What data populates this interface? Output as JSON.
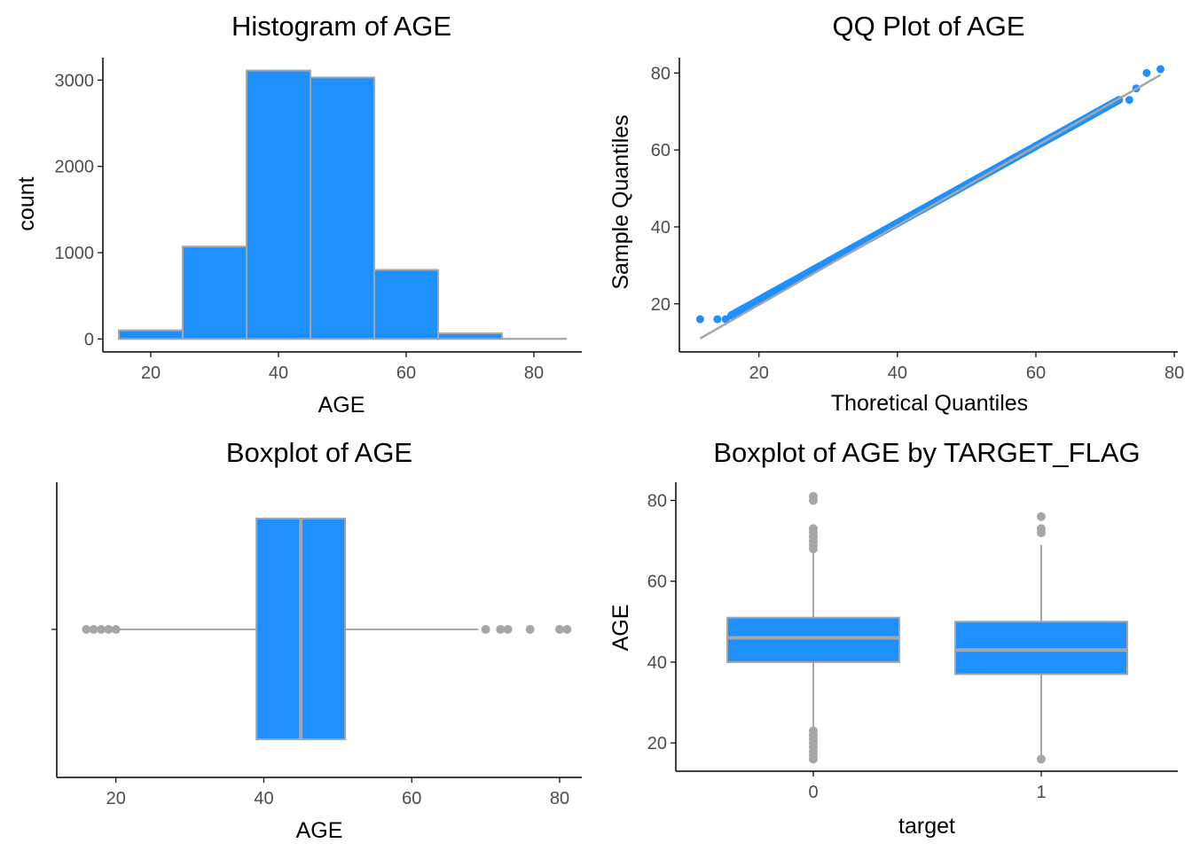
{
  "colors": {
    "fill": "#1E90FF",
    "outline": "#A6A6A6",
    "axis": "#000000",
    "tick_text": "#4d4d4d"
  },
  "chart_data": [
    {
      "type": "bar",
      "title": "Histogram of AGE",
      "xlabel": "AGE",
      "ylabel": "count",
      "xlim": [
        12.5,
        87.5
      ],
      "ylim": [
        -150,
        3260
      ],
      "xticks": [
        "20",
        "40",
        "60",
        "80"
      ],
      "xtick_values": [
        20,
        40,
        60,
        80
      ],
      "yticks": [
        "0",
        "1000",
        "2000",
        "3000"
      ],
      "ytick_values": [
        0,
        1000,
        2000,
        3000
      ],
      "bins": [
        {
          "from": 15,
          "to": 25,
          "count": 100
        },
        {
          "from": 25,
          "to": 35,
          "count": 1070
        },
        {
          "from": 35,
          "to": 45,
          "count": 3110
        },
        {
          "from": 45,
          "to": 55,
          "count": 3030
        },
        {
          "from": 55,
          "to": 65,
          "count": 800
        },
        {
          "from": 65,
          "to": 75,
          "count": 65
        },
        {
          "from": 75,
          "to": 85,
          "count": 3
        }
      ]
    },
    {
      "type": "scatter",
      "title": "QQ Plot of AGE",
      "xlabel": "Thoretical Quantiles",
      "ylabel": "Sample Quantiles",
      "xlim": [
        8.5,
        80.5
      ],
      "ylim": [
        7.5,
        84
      ],
      "xticks": [
        "20",
        "40",
        "60",
        "80"
      ],
      "xtick_values": [
        20,
        40,
        60,
        80
      ],
      "yticks": [
        "20",
        "40",
        "60",
        "80"
      ],
      "ytick_values": [
        20,
        40,
        60,
        80
      ],
      "reference_line": [
        [
          11.5,
          11
        ],
        [
          78,
          79.5
        ]
      ],
      "points": [
        [
          11.5,
          16
        ],
        [
          14,
          16
        ],
        [
          15.2,
          16
        ],
        [
          16,
          17
        ],
        [
          17,
          18
        ],
        [
          18,
          19
        ],
        [
          19,
          20
        ],
        [
          20,
          21
        ],
        [
          22,
          23
        ],
        [
          24,
          25
        ],
        [
          26,
          27
        ],
        [
          28,
          29
        ],
        [
          30,
          31
        ],
        [
          32,
          33
        ],
        [
          34,
          35
        ],
        [
          36,
          37
        ],
        [
          38,
          39
        ],
        [
          40,
          41
        ],
        [
          42,
          43
        ],
        [
          44,
          45
        ],
        [
          46,
          47
        ],
        [
          48,
          49
        ],
        [
          50,
          51
        ],
        [
          52,
          53
        ],
        [
          54,
          55
        ],
        [
          56,
          57
        ],
        [
          58,
          59
        ],
        [
          60,
          61
        ],
        [
          62,
          63
        ],
        [
          64,
          65
        ],
        [
          66,
          67
        ],
        [
          68,
          69
        ],
        [
          70,
          71
        ],
        [
          72,
          73
        ],
        [
          73.5,
          73
        ],
        [
          74.5,
          76
        ],
        [
          76,
          80
        ],
        [
          78,
          81
        ]
      ]
    },
    {
      "type": "box",
      "title": "Boxplot of AGE",
      "xlabel": "AGE",
      "xlim": [
        12,
        83
      ],
      "xticks": [
        "20",
        "40",
        "60",
        "80"
      ],
      "xtick_values": [
        20,
        40,
        60,
        80
      ],
      "box": {
        "whisker_low": 20,
        "q1": 39,
        "median": 45,
        "q3": 51,
        "whisker_high": 69,
        "outliers": [
          16,
          17,
          18,
          19,
          20,
          70,
          72,
          73,
          76,
          80,
          81
        ]
      }
    },
    {
      "type": "box",
      "title": "Boxplot of AGE by TARGET_FLAG",
      "xlabel": "target",
      "ylabel": "AGE",
      "ylim": [
        13,
        84.5
      ],
      "categories": [
        "0",
        "1"
      ],
      "yticks": [
        "20",
        "40",
        "60",
        "80"
      ],
      "ytick_values": [
        20,
        40,
        60,
        80
      ],
      "boxes": [
        {
          "category": "0",
          "whisker_low": 24,
          "q1": 40,
          "median": 46,
          "q3": 51,
          "whisker_high": 67,
          "outliers": [
            16,
            17,
            18,
            19,
            20,
            21,
            22,
            23,
            68,
            69,
            70,
            71,
            72,
            73,
            80,
            81
          ]
        },
        {
          "category": "1",
          "whisker_low": 17,
          "q1": 37,
          "median": 43,
          "q3": 50,
          "whisker_high": 69,
          "outliers": [
            16,
            72,
            73,
            76
          ]
        }
      ]
    }
  ]
}
